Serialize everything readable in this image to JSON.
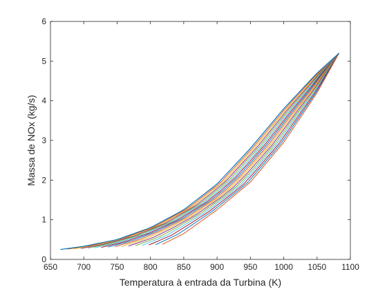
{
  "chart_data": {
    "type": "line",
    "title": "",
    "xlabel": "Temperatura à entrada da Turbina (K)",
    "ylabel": "Massa de NOx (kg/s)",
    "xlim": [
      650,
      1100
    ],
    "ylim": [
      0,
      6
    ],
    "xticks": [
      650,
      700,
      750,
      800,
      850,
      900,
      950,
      1000,
      1050,
      1100
    ],
    "yticks": [
      0,
      1,
      2,
      3,
      4,
      5,
      6
    ],
    "grid": false,
    "legend": "none",
    "colors": [
      "#0072BD",
      "#D95319",
      "#EDB120",
      "#7E2F8E",
      "#77AC30",
      "#4DBEEE",
      "#A2142F"
    ],
    "series_family": {
      "count": 16,
      "shared_end_point": {
        "x": 1083,
        "y": 5.2
      },
      "first_curve": {
        "start": {
          "x": 665,
          "y": 0.25
        },
        "x": [
          665,
          700,
          750,
          800,
          850,
          900,
          950,
          1000,
          1050,
          1083
        ],
        "y": [
          0.25,
          0.33,
          0.5,
          0.8,
          1.25,
          1.9,
          2.8,
          3.8,
          4.7,
          5.2
        ]
      },
      "last_curve": {
        "start": {
          "x": 818,
          "y": 0.38
        },
        "x": [
          818,
          850,
          900,
          950,
          1000,
          1050,
          1083
        ],
        "y": [
          0.38,
          0.65,
          1.25,
          1.95,
          2.95,
          4.2,
          5.2
        ]
      }
    }
  }
}
